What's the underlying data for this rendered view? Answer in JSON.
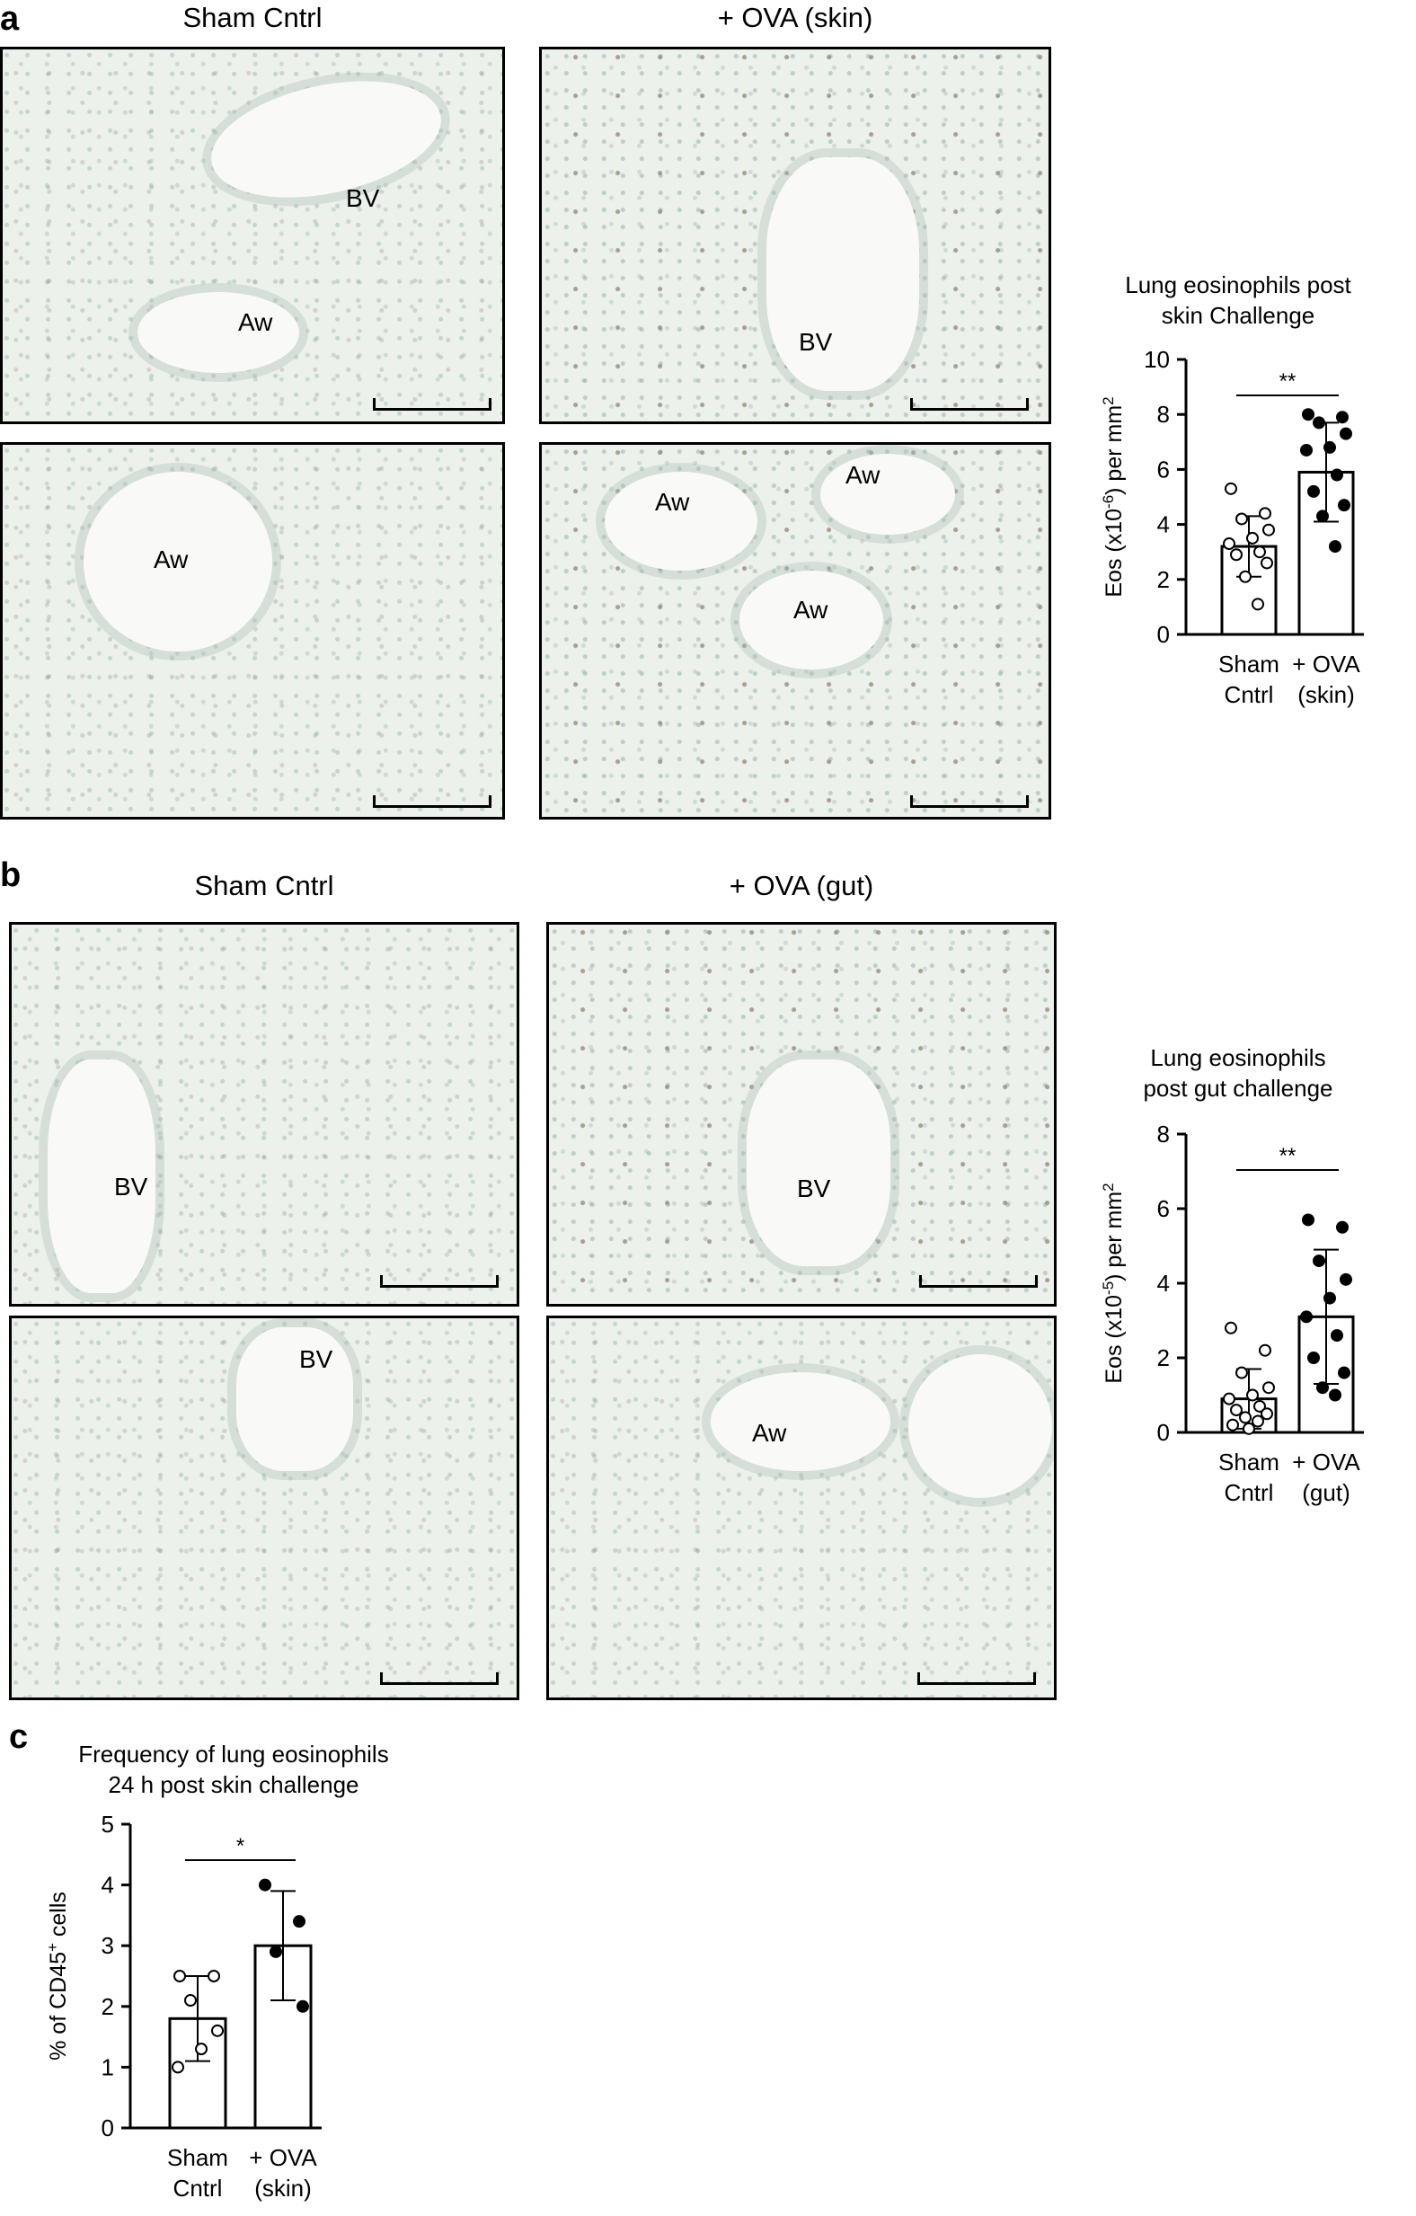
{
  "panels": {
    "a": {
      "letter": "a",
      "col_left": "Sham Cntrl",
      "col_right": "+ OVA (skin)",
      "tissue_labels": {
        "tl_bv": "BV",
        "tl_aw": "Aw",
        "tr_bv": "BV",
        "bl_aw": "Aw",
        "br_aw1": "Aw",
        "br_aw2": "Aw",
        "br_aw3": "Aw"
      }
    },
    "b": {
      "letter": "b",
      "col_left": "Sham Cntrl",
      "col_right": "+ OVA (gut)",
      "tissue_labels": {
        "tl_bv": "BV",
        "tr_bv": "BV",
        "bl_bv": "BV",
        "br_aw": "Aw"
      }
    },
    "c": {
      "letter": "c"
    }
  },
  "chart_data": [
    {
      "id": "chart-a",
      "type": "bar",
      "title_line1": "Lung eosinophils post",
      "title_line2": "skin Challenge",
      "ylabel_pre": "Eos (x10",
      "ylabel_sup": "-6",
      "ylabel_post": ") per mm",
      "ylabel_sup2": "2",
      "ylim": [
        0,
        10
      ],
      "yticks": [
        "0",
        "2",
        "4",
        "6",
        "8",
        "10"
      ],
      "categories": [
        [
          "Sham",
          "Cntrl"
        ],
        [
          "+ OVA",
          "(skin)"
        ]
      ],
      "means": [
        3.2,
        5.9
      ],
      "sd": [
        1.1,
        1.8
      ],
      "points": [
        [
          5.3,
          4.4,
          4.2,
          3.8,
          3.5,
          3.3,
          3.0,
          2.9,
          2.6,
          2.1,
          1.1
        ],
        [
          8.0,
          7.9,
          7.7,
          7.3,
          6.8,
          6.7,
          5.8,
          5.2,
          4.7,
          4.3,
          3.2
        ]
      ],
      "filled": [
        false,
        true
      ],
      "significance": "**"
    },
    {
      "id": "chart-b",
      "type": "bar",
      "title_line1": "Lung eosinophils",
      "title_line2": "post gut challenge",
      "ylabel_pre": "Eos (x10",
      "ylabel_sup": "-5",
      "ylabel_post": ") per mm",
      "ylabel_sup2": "2",
      "ylim": [
        0,
        8
      ],
      "yticks": [
        "0",
        "2",
        "4",
        "6",
        "8"
      ],
      "categories": [
        [
          "Sham",
          "Cntrl"
        ],
        [
          "+ OVA",
          "(gut)"
        ]
      ],
      "means": [
        0.9,
        3.1
      ],
      "sd": [
        0.8,
        1.8
      ],
      "points": [
        [
          2.8,
          2.2,
          1.6,
          1.2,
          1.0,
          0.9,
          0.7,
          0.6,
          0.5,
          0.4,
          0.3,
          0.2,
          0.1
        ],
        [
          5.7,
          5.5,
          4.6,
          4.1,
          3.6,
          3.1,
          2.6,
          2.0,
          1.6,
          1.2,
          1.0
        ]
      ],
      "filled": [
        false,
        true
      ],
      "significance": "**"
    },
    {
      "id": "chart-c",
      "type": "bar",
      "title_line1": "Frequency of lung eosinophils",
      "title_line2": "24 h post skin challenge",
      "ylabel_pre": "% of CD45",
      "ylabel_sup": "+",
      "ylabel_post": " cells",
      "ylabel_sup2": "",
      "ylim": [
        0,
        5
      ],
      "yticks": [
        "0",
        "1",
        "2",
        "3",
        "4",
        "5"
      ],
      "categories": [
        [
          "Sham",
          "Cntrl"
        ],
        [
          "+ OVA",
          "(skin)"
        ]
      ],
      "means": [
        1.8,
        3.0
      ],
      "sd": [
        0.7,
        0.9
      ],
      "points": [
        [
          2.5,
          2.5,
          2.1,
          1.6,
          1.3,
          1.0
        ],
        [
          4.0,
          3.4,
          2.9,
          2.0
        ]
      ],
      "filled": [
        false,
        true
      ],
      "significance": "*"
    }
  ]
}
